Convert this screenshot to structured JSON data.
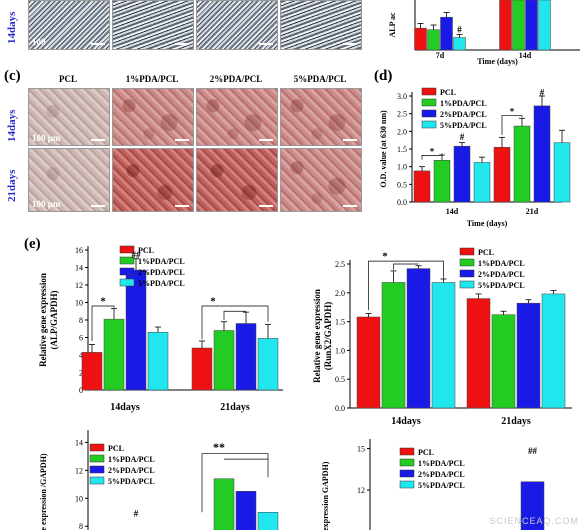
{
  "panels": {
    "b_row_label": "14days",
    "b_scale_text": "100",
    "c_letter": "(c)",
    "c_columns": [
      "PCL",
      "1%PDA/PCL",
      "2%PDA/PCL",
      "5%PDA/PCL"
    ],
    "c_rows": [
      "14days",
      "21days"
    ],
    "c_scale_text": "100 μm",
    "d_letter": "(d)",
    "e_letter": "(e)"
  },
  "legend_groups": [
    "PCL",
    "1%PDA/PCL",
    "2%PDA/PCL",
    "5%PDA/PCL"
  ],
  "colors": [
    "#ee1111",
    "#22cc22",
    "#1a1ae6",
    "#22e6ee"
  ],
  "watermark": "SCIENCEAQ.COM",
  "chart_data": [
    {
      "id": "alp_activity",
      "type": "bar",
      "categories": [
        "7d",
        "14d"
      ],
      "xlabel": "Time (days)",
      "ylabel": "ALP ac",
      "series": [
        {
          "name": "PCL",
          "values": [
            22,
            40
          ]
        },
        {
          "name": "1%PDA/PCL",
          "values": [
            21,
            40
          ]
        },
        {
          "name": "2%PDA/PCL",
          "values": [
            29,
            40
          ]
        },
        {
          "name": "5%PDA/PCL",
          "values": [
            16,
            40
          ]
        }
      ],
      "errors": [
        [
          3,
          3
        ],
        [
          3,
          3
        ],
        [
          3,
          3
        ],
        [
          2,
          3
        ]
      ],
      "annotations": [
        "#"
      ],
      "visible_ylim": [
        8,
        40
      ]
    },
    {
      "id": "od_value",
      "type": "bar",
      "categories": [
        "14d",
        "21d"
      ],
      "xlabel": "Time (days)",
      "ylabel": "O.D. value (at 630 nm)",
      "yticks": [
        "0.0",
        "0.5",
        "1.0",
        "1.5",
        "2.0",
        "2.5",
        "3.0"
      ],
      "ylim": [
        0,
        3.0
      ],
      "series": [
        {
          "name": "PCL",
          "values": [
            0.88,
            1.55
          ]
        },
        {
          "name": "1%PDA/PCL",
          "values": [
            1.18,
            2.15
          ]
        },
        {
          "name": "2%PDA/PCL",
          "values": [
            1.58,
            2.72
          ]
        },
        {
          "name": "5%PDA/PCL",
          "values": [
            1.12,
            1.68
          ]
        }
      ],
      "errors": [
        [
          0.12,
          0.28
        ],
        [
          0.15,
          0.22
        ],
        [
          0.1,
          0.28
        ],
        [
          0.15,
          0.35
        ]
      ],
      "annotations": [
        "*",
        "#",
        "*",
        "#"
      ],
      "legend": "top-left"
    },
    {
      "id": "alp_gene",
      "type": "bar",
      "categories": [
        "14days",
        "21days"
      ],
      "ylabel": "Relative gene expression (ALP/GAPDH)",
      "yticks": [
        "0",
        "2",
        "4",
        "6",
        "8",
        "10",
        "12",
        "14",
        "16"
      ],
      "ylim": [
        0,
        16
      ],
      "series": [
        {
          "name": "PCL",
          "values": [
            4.3,
            4.8
          ]
        },
        {
          "name": "1%PDA/PCL",
          "values": [
            8.1,
            6.8
          ]
        },
        {
          "name": "2%PDA/PCL",
          "values": [
            13.7,
            7.6
          ]
        },
        {
          "name": "5%PDA/PCL",
          "values": [
            6.6,
            5.9
          ]
        }
      ],
      "errors": [
        [
          0.9,
          0.8
        ],
        [
          1.2,
          1.0
        ],
        [
          1.3,
          1.3
        ],
        [
          0.6,
          1.6
        ]
      ],
      "annotations": [
        "*",
        "##",
        "*"
      ],
      "legend": "top"
    },
    {
      "id": "runx2_gene",
      "type": "bar",
      "categories": [
        "14days",
        "21days"
      ],
      "ylabel": "Relative gene expression (RunX2/GAPDH)",
      "yticks": [
        "0.0",
        "0.5",
        "1.0",
        "1.5",
        "2.0",
        "2.5"
      ],
      "ylim": [
        0,
        2.5
      ],
      "series": [
        {
          "name": "PCL",
          "values": [
            1.58,
            1.9
          ]
        },
        {
          "name": "1%PDA/PCL",
          "values": [
            2.18,
            1.62
          ]
        },
        {
          "name": "2%PDA/PCL",
          "values": [
            2.42,
            1.82
          ]
        },
        {
          "name": "5%PDA/PCL",
          "values": [
            2.18,
            1.98
          ]
        }
      ],
      "errors": [
        [
          0.06,
          0.08
        ],
        [
          0.2,
          0.06
        ],
        [
          0.05,
          0.06
        ],
        [
          0.06,
          0.06
        ]
      ],
      "annotations": [
        "*"
      ],
      "legend": "top-right"
    },
    {
      "id": "gene_bottom_left",
      "type": "bar",
      "categories": [
        "14days",
        "21days"
      ],
      "ylabel": "e expression /GAPDH)",
      "yticks": [
        "8",
        "10",
        "12",
        "14"
      ],
      "visible_ylim": [
        7,
        14
      ],
      "series": [
        {
          "name": "PCL",
          "values": [
            null,
            null
          ]
        },
        {
          "name": "1%PDA/PCL",
          "values": [
            null,
            11.4
          ]
        },
        {
          "name": "2%PDA/PCL",
          "values": [
            7.5,
            10.5
          ]
        },
        {
          "name": "5%PDA/PCL",
          "values": [
            null,
            9.0
          ]
        }
      ],
      "annotations": [
        "#",
        "**"
      ],
      "legend": "top"
    },
    {
      "id": "gene_bottom_right",
      "type": "bar",
      "categories": [
        "14days",
        "21days"
      ],
      "ylabel": "e expression GAPDH)",
      "yticks": [
        "9",
        "12",
        "15"
      ],
      "visible_ylim": [
        8,
        15
      ],
      "series": [
        {
          "name": "PCL",
          "values": [
            null,
            null
          ]
        },
        {
          "name": "1%PDA/PCL",
          "values": [
            null,
            null
          ]
        },
        {
          "name": "2%PDA/PCL",
          "values": [
            null,
            12.6
          ]
        },
        {
          "name": "5%PDA/PCL",
          "values": [
            null,
            null
          ]
        }
      ],
      "annotations": [
        "**",
        "##"
      ],
      "legend": "top-left"
    }
  ]
}
